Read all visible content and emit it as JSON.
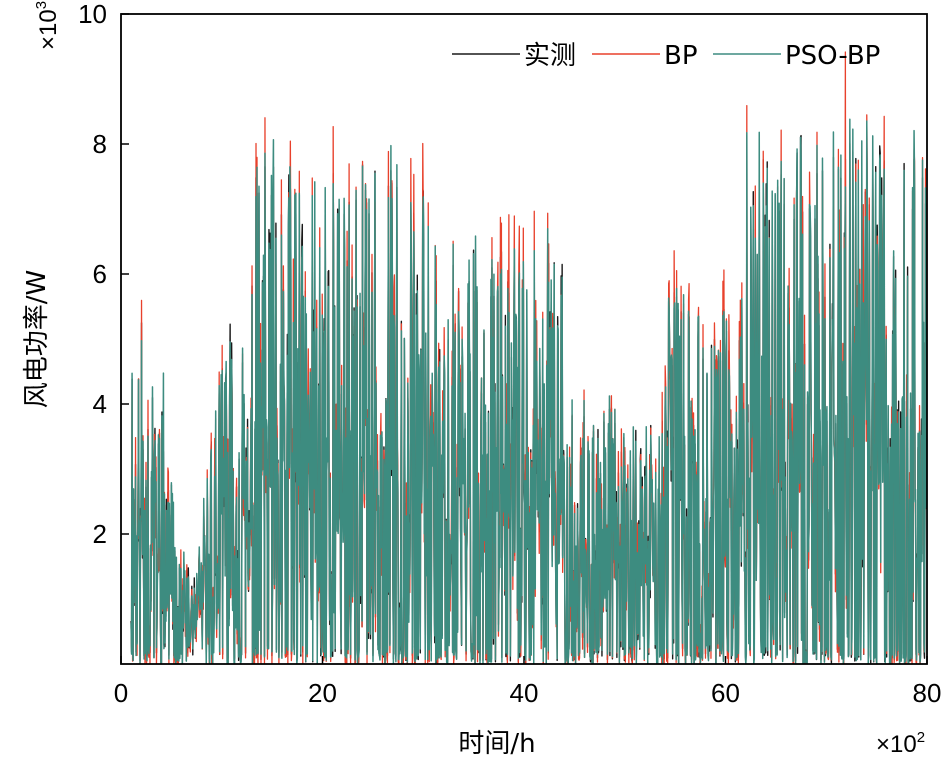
{
  "chart_data": {
    "type": "line",
    "xlabel": "时间/h",
    "ylabel": "风电功率/W",
    "x_multiplier": "×10",
    "x_multiplier_exp": "2",
    "y_multiplier": "×10",
    "y_multiplier_exp": "3",
    "xlim": [
      0,
      80
    ],
    "ylim": [
      0,
      10
    ],
    "x_ticks": [
      0,
      20,
      40,
      60,
      80
    ],
    "y_ticks": [
      2,
      4,
      6,
      8,
      10
    ],
    "legend_position": "top-right",
    "grid": false,
    "x_range_of_data": [
      1,
      80
    ],
    "series": [
      {
        "name": "实测",
        "color": "#1a1a1a",
        "width": 1.4,
        "seed": 11,
        "noise": 0.0
      },
      {
        "name": "BP",
        "color": "#e8412c",
        "width": 1.3,
        "seed": 11,
        "noise": 0.45
      },
      {
        "name": "PSO-BP",
        "color": "#3d8c80",
        "width": 1.5,
        "seed": 11,
        "noise": 0.25
      }
    ]
  }
}
